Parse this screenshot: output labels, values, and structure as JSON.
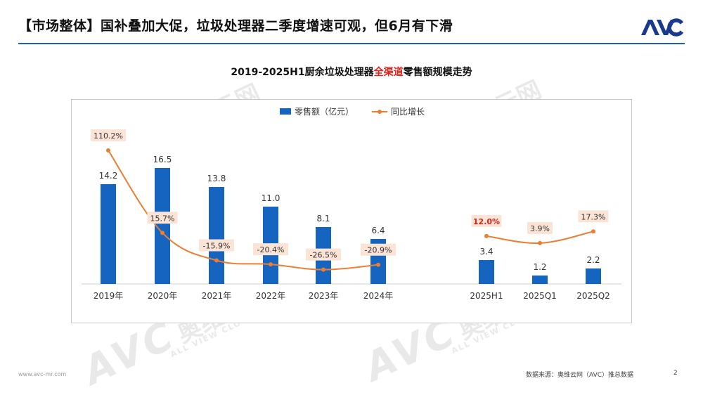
{
  "header": {
    "title": "【市场整体】国补叠加大促，垃圾处理器二季度增速可观，但6月有下滑",
    "logo_text": "AVC"
  },
  "chart_title": {
    "prefix": "2019-2025H1厨余垃圾处理器",
    "highlight": "全渠道",
    "suffix": "零售额规模走势"
  },
  "legend": {
    "bar_label": "零售额（亿元）",
    "line_label": "同比增长"
  },
  "colors": {
    "bar": "#1565c0",
    "line": "#ed7d31",
    "label_bg": "#fbe3d6",
    "highlight_red": "#e2231a"
  },
  "chart_data": {
    "type": "bar",
    "categories": [
      "2019年",
      "2020年",
      "2021年",
      "2022年",
      "2023年",
      "2024年",
      "2025H1",
      "2025Q1",
      "2025Q2"
    ],
    "series": [
      {
        "name": "零售额（亿元）",
        "type": "bar",
        "values": [
          14.2,
          16.5,
          13.8,
          11.0,
          8.1,
          6.4,
          3.4,
          1.2,
          2.2
        ],
        "labels": [
          "14.2",
          "16.5",
          "13.8",
          "11.0",
          "8.1",
          "6.4",
          "3.4",
          "1.2",
          "2.2"
        ]
      },
      {
        "name": "同比增长",
        "type": "line",
        "segments": [
          {
            "categories": [
              "2019年",
              "2020年",
              "2021年",
              "2022年",
              "2023年",
              "2024年"
            ],
            "values": [
              110.2,
              15.7,
              -15.9,
              -20.4,
              -26.5,
              -20.9
            ],
            "labels": [
              "110.2%",
              "15.7%",
              "-15.9%",
              "-20.4%",
              "-26.5%",
              "-20.9%"
            ]
          },
          {
            "categories": [
              "2025H1",
              "2025Q1",
              "2025Q2"
            ],
            "values": [
              12.0,
              3.9,
              17.3
            ],
            "labels": [
              "12.0%",
              "3.9%",
              "17.3%"
            ]
          }
        ]
      }
    ],
    "legend_position": "top",
    "grid": false
  },
  "watermark": {
    "brand": "AVC",
    "cn": "奥维云网",
    "en": "ALL VIEW CLOUD"
  },
  "footer": {
    "website": "www.avc-mr.com",
    "source": "数据来源：奥维云网（AVC）推总数据",
    "page": "2"
  }
}
